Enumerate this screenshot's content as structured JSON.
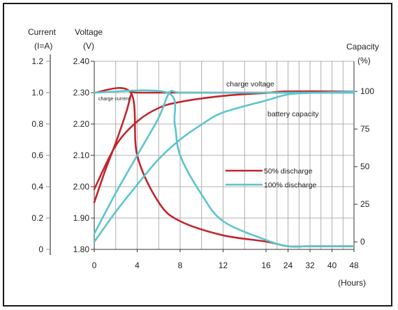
{
  "chart_data": {
    "type": "line",
    "axes": {
      "current": {
        "label_line1": "Current",
        "label_line2": "(I=A)",
        "ticks": [
          "0",
          "0.2",
          "0.4",
          "0.6",
          "0.8",
          "1.0",
          "1.2"
        ],
        "range": [
          0,
          1.2
        ]
      },
      "voltage": {
        "label_line1": "Voltage",
        "label_line2": "(V)",
        "ticks": [
          "1.80",
          "1.90",
          "2.00",
          "2.10",
          "2.20",
          "2.30",
          "2.40"
        ],
        "range": [
          1.8,
          2.4
        ]
      },
      "capacity": {
        "label_line1": "Capacity",
        "label_line2": "(%)",
        "ticks": [
          "0",
          "25",
          "50",
          "75",
          "100"
        ],
        "range": [
          -5,
          120
        ]
      },
      "time": {
        "label": "(Hours)",
        "ticks": [
          "0",
          "4",
          "8",
          "12",
          "16",
          "24",
          "32",
          "40",
          "48"
        ]
      }
    },
    "grid": true,
    "annotations": {
      "charge_voltage": "charge voltage",
      "charge_current": "charge current",
      "battery_capacity": "battery capacity"
    },
    "legend": {
      "placement": "center-right",
      "items": [
        {
          "name": "50% discharge",
          "color": "#c0262c"
        },
        {
          "name": "100% discharge",
          "color": "#5cc5cc"
        }
      ]
    },
    "series": [
      {
        "name": "50% discharge",
        "quantity": "charge voltage",
        "axis": "voltage",
        "color": "#c0262c",
        "x": [
          0,
          1,
          2,
          3,
          3.5,
          4,
          8,
          12,
          16,
          24,
          48
        ],
        "y": [
          1.95,
          2.05,
          2.14,
          2.24,
          2.3,
          2.3,
          2.3,
          2.3,
          2.3,
          2.3,
          2.3
        ]
      },
      {
        "name": "50% discharge",
        "quantity": "charge current",
        "axis": "current",
        "color": "#c0262c",
        "x": [
          0,
          3.4,
          4,
          6,
          8,
          12,
          16,
          24,
          32,
          48
        ],
        "y": [
          1.0,
          1.0,
          0.6,
          0.3,
          0.18,
          0.09,
          0.05,
          0.02,
          0.02,
          0.02
        ]
      },
      {
        "name": "50% discharge",
        "quantity": "battery capacity",
        "axis": "capacity",
        "color": "#c0262c",
        "x": [
          0,
          2,
          4,
          6,
          8,
          12,
          16,
          24,
          48
        ],
        "y": [
          35,
          64,
          80,
          89,
          93,
          97,
          99,
          100,
          100
        ]
      },
      {
        "name": "100% discharge",
        "quantity": "charge voltage",
        "axis": "voltage",
        "color": "#5cc5cc",
        "x": [
          0,
          2,
          4,
          6,
          7,
          8,
          12,
          16,
          24,
          48
        ],
        "y": [
          1.85,
          1.98,
          2.1,
          2.22,
          2.3,
          2.3,
          2.3,
          2.3,
          2.3,
          2.3
        ]
      },
      {
        "name": "100% discharge",
        "quantity": "charge current",
        "axis": "current",
        "color": "#5cc5cc",
        "x": [
          0,
          6.8,
          7.5,
          8,
          10,
          12,
          16,
          24,
          32,
          48
        ],
        "y": [
          1.0,
          1.0,
          0.8,
          0.6,
          0.35,
          0.18,
          0.06,
          0.02,
          0.02,
          0.02
        ]
      },
      {
        "name": "100% discharge",
        "quantity": "battery capacity",
        "axis": "capacity",
        "color": "#5cc5cc",
        "x": [
          0,
          2,
          4,
          6,
          8,
          10,
          12,
          16,
          24,
          32,
          48
        ],
        "y": [
          0,
          20,
          38,
          55,
          68,
          78,
          86,
          94,
          98,
          99,
          100
        ]
      }
    ]
  }
}
